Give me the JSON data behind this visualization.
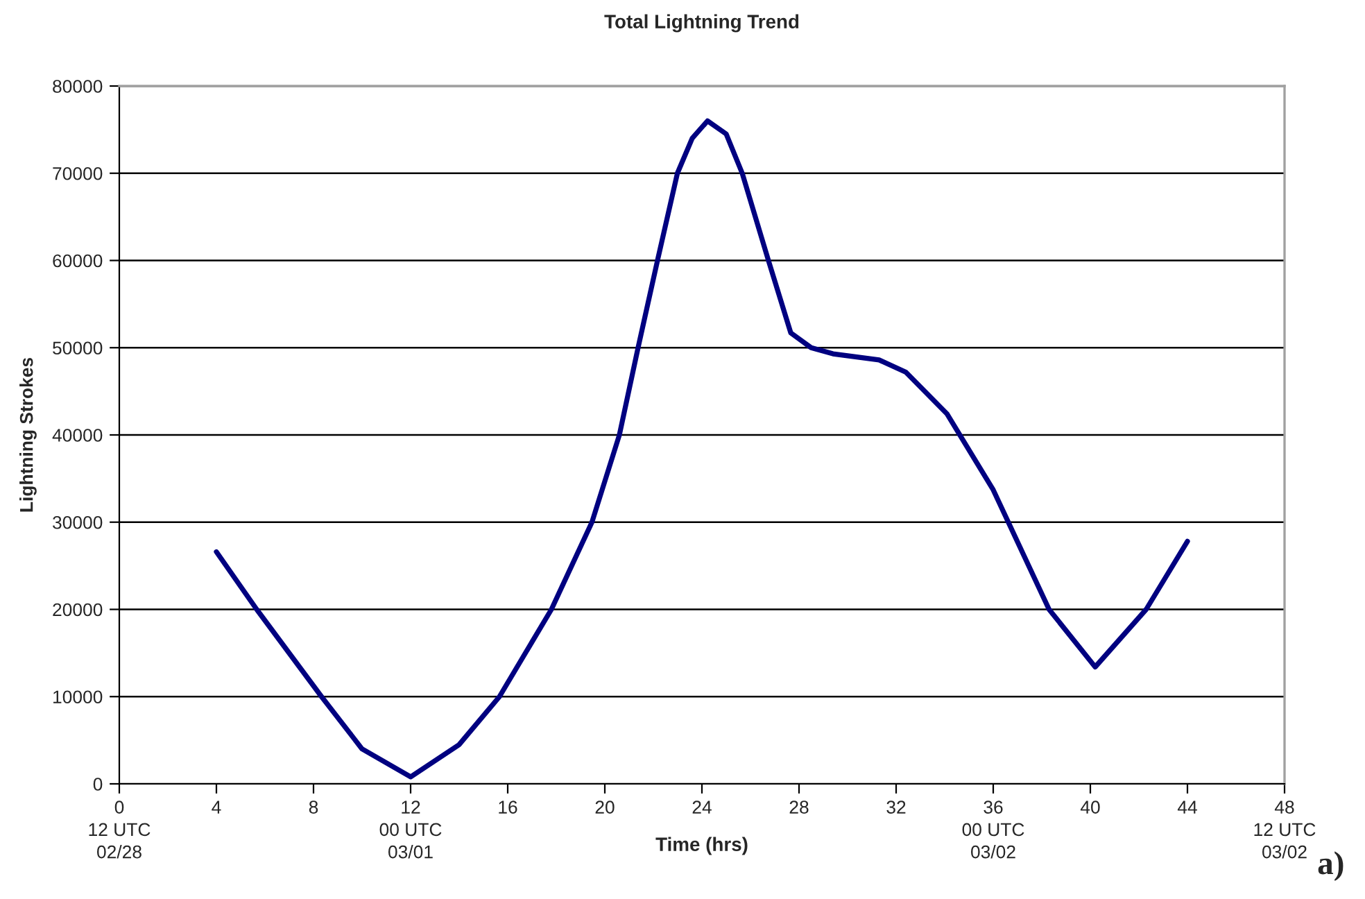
{
  "chart_data": {
    "type": "line",
    "title": "Total Lightning Trend",
    "xlabel": "Time (hrs)",
    "ylabel": "Lightning Strokes",
    "series": [
      {
        "color": "#000080",
        "x": [
          4,
          5.66,
          8.33,
          10,
          12,
          14,
          15.66,
          17.8,
          19.47,
          20.6,
          21.37,
          22.17,
          22.99,
          23.6,
          24.23,
          25,
          25.66,
          26.74,
          27.66,
          28.5,
          29.4,
          31.3,
          32.4,
          34.1,
          36.0,
          38.3,
          40.2,
          42.3,
          44
        ],
        "values": [
          26600,
          20000,
          10000,
          4000,
          800,
          4500,
          10000,
          20000,
          30000,
          40000,
          50000,
          60000,
          70000,
          74000,
          76000,
          74500,
          70000,
          60000,
          51700,
          50000,
          49300,
          48600,
          47200,
          42400,
          33700,
          20000,
          13400,
          20000,
          27800
        ]
      }
    ],
    "xlim": [
      0,
      48
    ],
    "xticks": [
      {
        "value": 0,
        "label": "0\n12 UTC\n02/28"
      },
      4,
      8,
      {
        "value": 12,
        "label": "12\n00 UTC\n03/01"
      },
      16,
      20,
      24,
      28,
      32,
      {
        "value": 36,
        "label": "36\n00 UTC\n03/02"
      },
      40,
      44,
      {
        "value": 48,
        "label": "48\n12 UTC\n03/02"
      }
    ],
    "ylim": [
      0,
      80000
    ],
    "yticks": [
      0,
      10000,
      20000,
      30000,
      40000,
      50000,
      60000,
      70000,
      80000
    ],
    "grid": "y",
    "legend": false,
    "marker": "none",
    "line_style": "solid",
    "annotations": [
      "a)"
    ]
  }
}
